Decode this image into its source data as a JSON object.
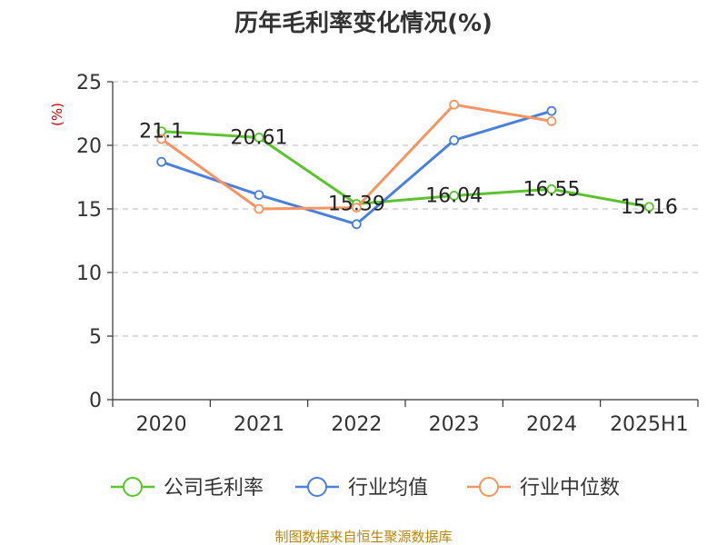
{
  "chart_data": {
    "type": "line",
    "title": "历年毛利率变化情况(%)",
    "ylabel": "(%)",
    "xlabel": "",
    "categories": [
      "2020",
      "2021",
      "2022",
      "2023",
      "2024",
      "2025H1"
    ],
    "ylim": [
      0,
      25
    ],
    "yticks": [
      0,
      5,
      10,
      15,
      20,
      25
    ],
    "grid": true,
    "legend_position": "bottom",
    "series": [
      {
        "name": "公司毛利率",
        "color": "#5cc22d",
        "values": [
          21.1,
          20.61,
          15.39,
          16.04,
          16.55,
          15.16
        ],
        "labels": [
          "21.1",
          "20.61",
          "15.39",
          "16.04",
          "16.55",
          "15.16"
        ]
      },
      {
        "name": "行业均值",
        "color": "#4a7fdb",
        "values": [
          18.7,
          16.1,
          13.8,
          20.4,
          22.7,
          null
        ]
      },
      {
        "name": "行业中位数",
        "color": "#f59563",
        "values": [
          20.5,
          15.0,
          15.1,
          23.2,
          21.9,
          null
        ]
      }
    ]
  },
  "source": "制图数据来自恒生聚源数据库"
}
